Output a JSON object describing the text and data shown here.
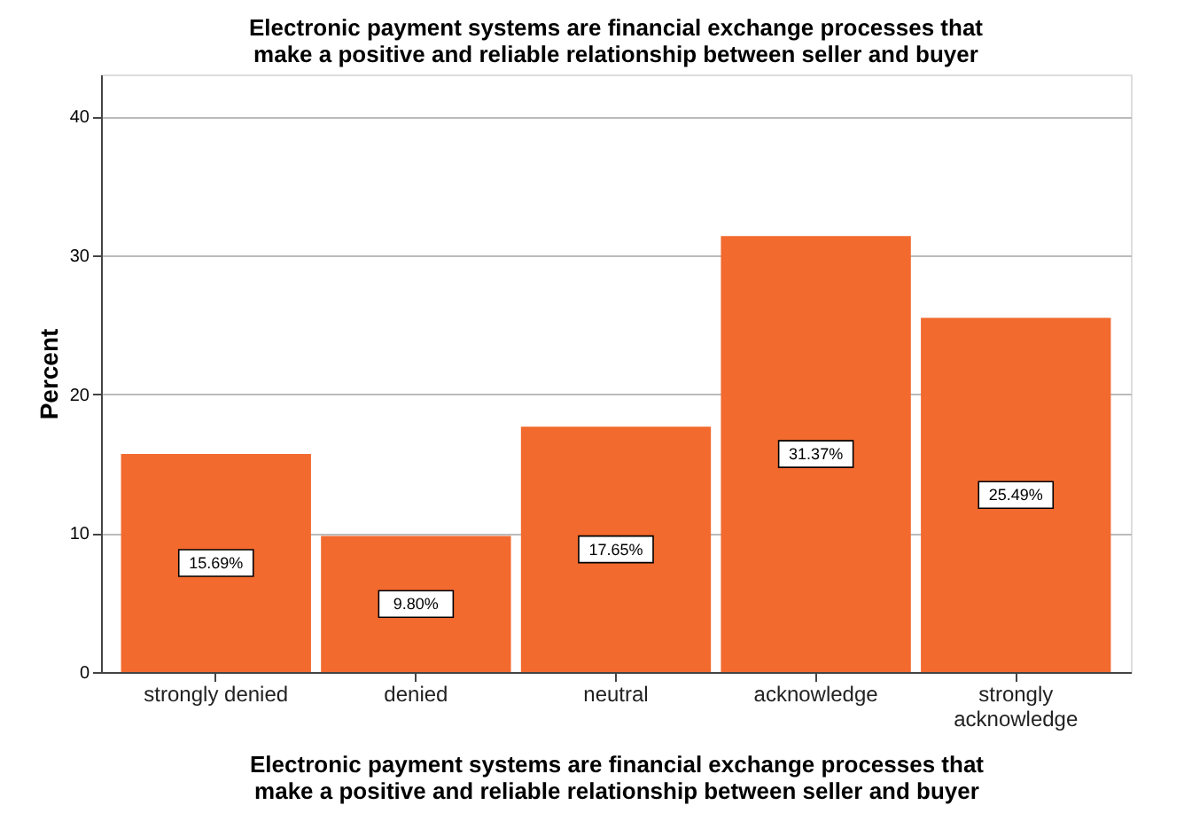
{
  "chart_data": {
    "type": "bar",
    "title": "Electronic payment systems are financial exchange processes that make a positive and reliable relationship between seller and buyer",
    "xlabel": "Electronic payment systems are financial exchange processes that make a positive and reliable relationship between seller and buyer",
    "ylabel": "Percent",
    "categories": [
      "strongly denied",
      "denied",
      "neutral",
      "acknowledge",
      "strongly acknowledge"
    ],
    "values": [
      15.69,
      9.8,
      17.65,
      31.37,
      25.49
    ],
    "value_labels": [
      "15.69%",
      "9.80%",
      "17.65%",
      "31.37%",
      "25.49%"
    ],
    "color": "#f26a2e",
    "ylim": [
      0,
      43
    ],
    "yticks": [
      0,
      10,
      20,
      30,
      40
    ],
    "grid": "y"
  }
}
